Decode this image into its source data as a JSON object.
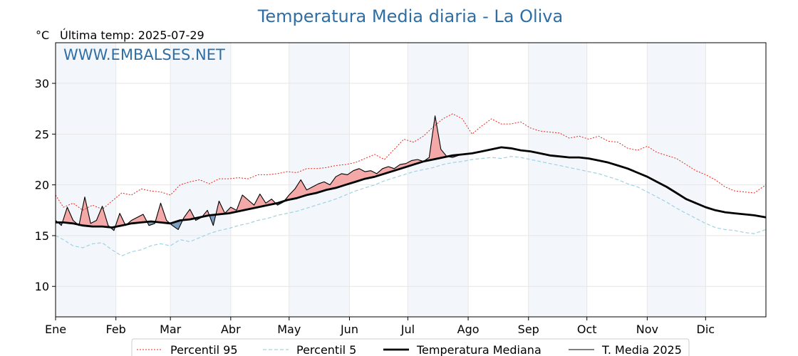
{
  "chart_data": {
    "type": "line",
    "title": "Temperatura Media diaria - La Oliva",
    "y_unit": "°C",
    "last_temp_label": "Última temp: 2025-07-29",
    "watermark": "WWW.EMBALSES.NET",
    "xlim": [
      1,
      366
    ],
    "ylim": [
      7,
      34
    ],
    "yticks": [
      10,
      15,
      20,
      25,
      30
    ],
    "x_ticks": [
      {
        "label": "Ene",
        "day": 1
      },
      {
        "label": "Feb",
        "day": 32
      },
      {
        "label": "Mar",
        "day": 60
      },
      {
        "label": "Abr",
        "day": 91
      },
      {
        "label": "May",
        "day": 121
      },
      {
        "label": "Jun",
        "day": 152
      },
      {
        "label": "Jul",
        "day": 182
      },
      {
        "label": "Ago",
        "day": 213
      },
      {
        "label": "Sep",
        "day": 244
      },
      {
        "label": "Oct",
        "day": 274
      },
      {
        "label": "Nov",
        "day": 305
      },
      {
        "label": "Dic",
        "day": 335
      }
    ],
    "shaded_month_pairs": [
      [
        1,
        32
      ],
      [
        60,
        91
      ],
      [
        121,
        152
      ],
      [
        182,
        213
      ],
      [
        244,
        274
      ],
      [
        305,
        335
      ]
    ],
    "grid": true,
    "legend_position": "bottom",
    "series": [
      {
        "name": "Percentil 95",
        "color": "#e8261c",
        "style": "dotted",
        "x": [
          1,
          5,
          10,
          15,
          20,
          25,
          30,
          35,
          40,
          45,
          50,
          55,
          60,
          65,
          70,
          75,
          80,
          85,
          90,
          95,
          100,
          105,
          110,
          115,
          120,
          125,
          130,
          135,
          140,
          145,
          150,
          155,
          160,
          165,
          170,
          175,
          180,
          185,
          190,
          195,
          200,
          205,
          210,
          215,
          220,
          225,
          230,
          235,
          240,
          245,
          250,
          255,
          260,
          265,
          270,
          275,
          280,
          285,
          290,
          295,
          300,
          305,
          310,
          315,
          320,
          325,
          330,
          335,
          340,
          345,
          350,
          355,
          360,
          366
        ],
        "y": [
          19.0,
          17.8,
          18.2,
          17.5,
          18.0,
          17.6,
          18.4,
          19.2,
          19.0,
          19.6,
          19.4,
          19.3,
          19.0,
          20.0,
          20.3,
          20.5,
          20.1,
          20.6,
          20.6,
          20.7,
          20.6,
          21.0,
          21.0,
          21.1,
          21.3,
          21.2,
          21.6,
          21.6,
          21.7,
          21.9,
          22.0,
          22.2,
          22.6,
          23.0,
          22.5,
          23.5,
          24.5,
          24.2,
          24.8,
          25.7,
          26.5,
          27.0,
          26.5,
          25.0,
          25.8,
          26.5,
          26.0,
          26.0,
          26.2,
          25.6,
          25.3,
          25.2,
          25.1,
          24.6,
          24.8,
          24.5,
          24.8,
          24.3,
          24.2,
          23.6,
          23.4,
          23.8,
          23.2,
          22.9,
          22.6,
          22.0,
          21.4,
          21.0,
          20.5,
          19.8,
          19.4,
          19.3,
          19.2,
          20.0
        ]
      },
      {
        "name": "Percentil 5",
        "color": "#9fd2e3",
        "style": "dashed",
        "x": [
          1,
          5,
          10,
          15,
          20,
          25,
          30,
          35,
          40,
          45,
          50,
          55,
          60,
          65,
          70,
          75,
          80,
          85,
          90,
          95,
          100,
          105,
          110,
          115,
          120,
          125,
          130,
          135,
          140,
          145,
          150,
          155,
          160,
          165,
          170,
          175,
          180,
          185,
          190,
          195,
          200,
          205,
          210,
          215,
          220,
          225,
          230,
          235,
          240,
          245,
          250,
          255,
          260,
          265,
          270,
          275,
          280,
          285,
          290,
          295,
          300,
          305,
          310,
          315,
          320,
          325,
          330,
          335,
          340,
          345,
          350,
          355,
          360,
          366
        ],
        "y": [
          15.0,
          14.6,
          14.0,
          13.8,
          14.2,
          14.3,
          13.6,
          13.0,
          13.4,
          13.6,
          14.0,
          14.2,
          14.0,
          14.6,
          14.4,
          14.8,
          15.2,
          15.5,
          15.7,
          16.0,
          16.2,
          16.5,
          16.7,
          17.0,
          17.2,
          17.4,
          17.7,
          18.0,
          18.3,
          18.6,
          19.0,
          19.4,
          19.7,
          20.0,
          20.4,
          20.7,
          21.0,
          21.3,
          21.5,
          21.7,
          22.0,
          22.2,
          22.3,
          22.5,
          22.6,
          22.7,
          22.6,
          22.8,
          22.7,
          22.5,
          22.3,
          22.1,
          21.9,
          21.7,
          21.5,
          21.3,
          21.1,
          20.8,
          20.5,
          20.1,
          19.8,
          19.3,
          18.8,
          18.3,
          17.7,
          17.2,
          16.7,
          16.2,
          15.8,
          15.6,
          15.5,
          15.3,
          15.2,
          15.6
        ]
      },
      {
        "name": "Temperatura Mediana",
        "color": "#000000",
        "style": "bold",
        "x": [
          1,
          5,
          10,
          15,
          20,
          25,
          30,
          35,
          40,
          45,
          50,
          55,
          60,
          65,
          70,
          75,
          80,
          85,
          90,
          95,
          100,
          105,
          110,
          115,
          120,
          125,
          130,
          135,
          140,
          145,
          150,
          155,
          160,
          165,
          170,
          175,
          180,
          185,
          190,
          195,
          200,
          205,
          210,
          215,
          220,
          225,
          230,
          235,
          240,
          245,
          250,
          255,
          260,
          265,
          270,
          275,
          280,
          285,
          290,
          295,
          300,
          305,
          310,
          315,
          320,
          325,
          330,
          335,
          340,
          345,
          350,
          355,
          360,
          366
        ],
        "y": [
          16.3,
          16.3,
          16.2,
          16.0,
          15.9,
          15.9,
          15.8,
          16.0,
          16.2,
          16.3,
          16.4,
          16.3,
          16.2,
          16.5,
          16.6,
          16.8,
          17.0,
          17.1,
          17.2,
          17.4,
          17.6,
          17.8,
          18.0,
          18.2,
          18.5,
          18.7,
          19.0,
          19.2,
          19.5,
          19.7,
          20.0,
          20.3,
          20.6,
          20.8,
          21.1,
          21.4,
          21.7,
          22.0,
          22.3,
          22.5,
          22.7,
          22.9,
          23.0,
          23.1,
          23.3,
          23.5,
          23.7,
          23.6,
          23.4,
          23.3,
          23.1,
          22.9,
          22.8,
          22.7,
          22.7,
          22.6,
          22.4,
          22.2,
          21.9,
          21.6,
          21.2,
          20.8,
          20.3,
          19.8,
          19.2,
          18.6,
          18.2,
          17.8,
          17.5,
          17.3,
          17.2,
          17.1,
          17.0,
          16.8
        ]
      },
      {
        "name": "T. Media 2025",
        "color": "#000000",
        "style": "solid",
        "x": [
          1,
          4,
          7,
          10,
          13,
          16,
          19,
          22,
          25,
          28,
          31,
          34,
          37,
          40,
          43,
          46,
          49,
          52,
          55,
          58,
          61,
          64,
          67,
          70,
          73,
          76,
          79,
          82,
          85,
          88,
          91,
          94,
          97,
          100,
          103,
          106,
          109,
          112,
          115,
          118,
          121,
          124,
          127,
          130,
          133,
          136,
          139,
          142,
          145,
          148,
          151,
          154,
          157,
          160,
          163,
          166,
          169,
          172,
          175,
          178,
          181,
          184,
          187,
          190,
          193,
          196,
          199,
          202,
          205,
          208,
          210
        ],
        "y": [
          16.5,
          16.0,
          17.8,
          16.5,
          16.0,
          18.8,
          16.2,
          16.5,
          17.9,
          16.0,
          15.5,
          17.2,
          16.0,
          16.5,
          16.8,
          17.1,
          16.0,
          16.2,
          18.2,
          16.5,
          16.0,
          15.6,
          16.8,
          17.6,
          16.5,
          16.8,
          17.5,
          16.0,
          18.4,
          17.2,
          17.8,
          17.5,
          19.0,
          18.5,
          18.0,
          19.1,
          18.2,
          18.6,
          18.0,
          18.3,
          19.0,
          19.6,
          20.5,
          19.5,
          19.8,
          20.1,
          20.3,
          20.0,
          20.8,
          21.1,
          21.0,
          21.4,
          21.6,
          21.3,
          21.4,
          21.1,
          21.6,
          21.8,
          21.6,
          22.0,
          22.1,
          22.4,
          22.5,
          22.3,
          22.7,
          26.8,
          23.5,
          22.8,
          22.7,
          22.9,
          23.0
        ]
      }
    ],
    "fill_above_color": "#f4a9a8",
    "fill_below_color": "#7b9ec2"
  }
}
